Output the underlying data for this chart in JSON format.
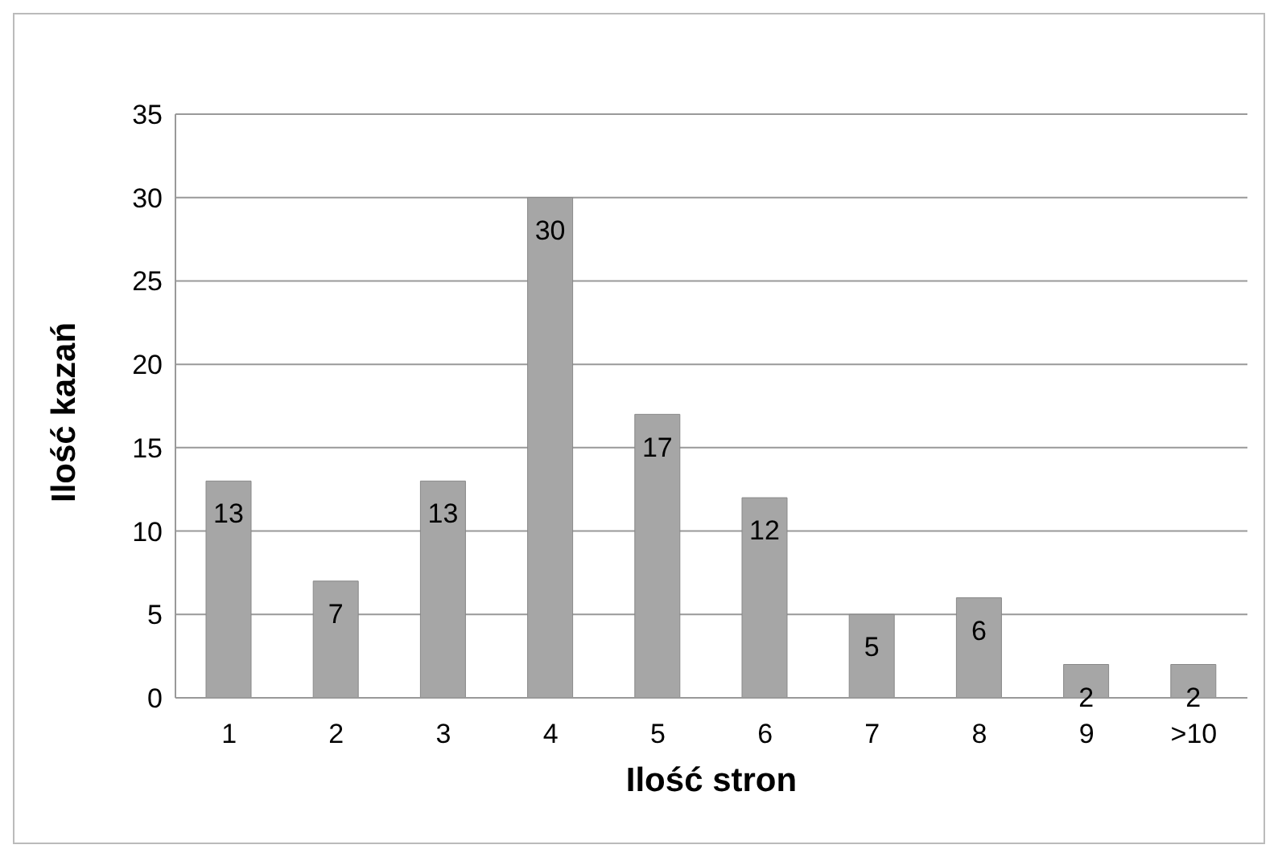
{
  "chart_data": {
    "type": "bar",
    "xlabel": "Ilość stron",
    "ylabel": "Ilość kazań",
    "categories": [
      "1",
      "2",
      "3",
      "4",
      "5",
      "6",
      "7",
      "8",
      "9",
      ">10"
    ],
    "values": [
      13,
      7,
      13,
      30,
      17,
      12,
      5,
      6,
      2,
      2
    ],
    "color": "#a6a6a6",
    "ylim": [
      0,
      35
    ],
    "yticks": [
      0,
      5,
      10,
      15,
      20,
      25,
      30,
      35
    ],
    "grid": "y",
    "data_labels": true
  }
}
